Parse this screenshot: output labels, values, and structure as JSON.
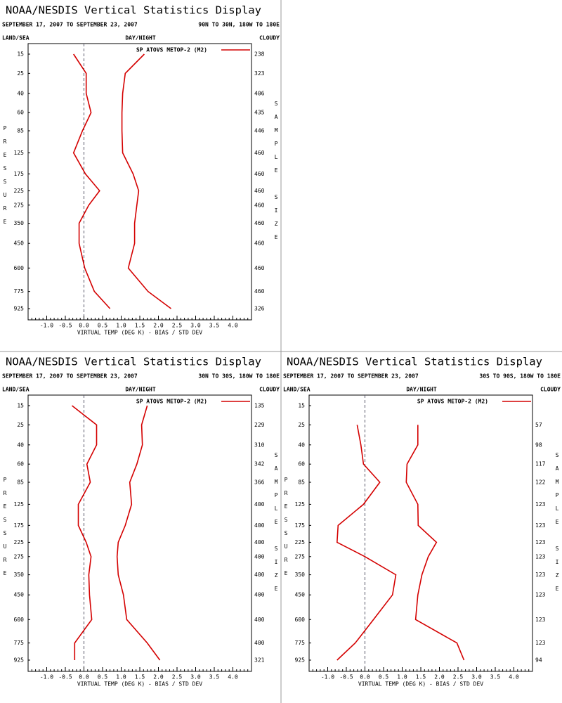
{
  "chart_data": [
    {
      "type": "line",
      "title": "NOAA/NESDIS Vertical Statistics Display",
      "subtitle": "SEPTEMBER 17, 2007 TO SEPTEMBER 23, 2007",
      "region": "90N TO 30N, 180W TO 180E",
      "land_sea": "LAND/SEA",
      "day_night": "DAY/NIGHT",
      "cloudy": "CLOUDY",
      "ylabel": "PRESSURE",
      "y2label": "SAMPLE SIZE",
      "xlabel": "VIRTUAL TEMP (DEG K) - BIAS / STD DEV",
      "legend": "SP ATOVS METOP-2 (M2)",
      "y": [
        15,
        25,
        40,
        60,
        85,
        125,
        175,
        225,
        275,
        350,
        450,
        600,
        775,
        925
      ],
      "sample_size": [
        238,
        323,
        406,
        435,
        446,
        460,
        460,
        460,
        460,
        460,
        460,
        460,
        460,
        326
      ],
      "xlim": [
        -1.5,
        4.5
      ],
      "xticks": [
        {
          "value": -1,
          "label": "-1.0"
        },
        -0.5,
        {
          "value": 0,
          "label": "0.0"
        },
        0.5,
        {
          "value": 1,
          "label": "1.0"
        },
        1.5,
        {
          "value": 2,
          "label": "2.0"
        },
        2.5,
        {
          "value": 3,
          "label": "3.0"
        },
        3.5,
        {
          "value": 4,
          "label": "4.0"
        }
      ],
      "series": [
        {
          "color": "#d40000",
          "values": [
            -0.28,
            0.06,
            0.06,
            0.19,
            -0.04,
            -0.28,
            0.04,
            0.42,
            0.13,
            -0.13,
            -0.13,
            0.02,
            0.28,
            0.7
          ]
        },
        {
          "color": "#d40000",
          "values": [
            1.62,
            1.11,
            1.04,
            1.02,
            1.02,
            1.04,
            1.32,
            1.47,
            1.42,
            1.36,
            1.36,
            1.19,
            1.72,
            2.34
          ]
        }
      ]
    },
    {
      "type": "line",
      "title": "NOAA/NESDIS Vertical Statistics Display",
      "subtitle": "SEPTEMBER 17, 2007 TO SEPTEMBER 23, 2007",
      "region": "30N TO 30S, 180W TO 180E",
      "land_sea": "LAND/SEA",
      "day_night": "DAY/NIGHT",
      "cloudy": "CLOUDY",
      "ylabel": "PRESSURE",
      "y2label": "SAMPLE SIZE",
      "xlabel": "VIRTUAL TEMP (DEG K) - BIAS / STD DEV",
      "legend": "SP ATOVS METOP-2 (M2)",
      "y": [
        15,
        25,
        40,
        60,
        85,
        125,
        175,
        225,
        275,
        350,
        450,
        600,
        775,
        925
      ],
      "sample_size": [
        135,
        229,
        310,
        342,
        366,
        400,
        400,
        400,
        400,
        400,
        400,
        400,
        400,
        321
      ],
      "xlim": [
        -1.5,
        4.5
      ],
      "xticks": [
        {
          "value": -1,
          "label": "-1.0"
        },
        -0.5,
        {
          "value": 0,
          "label": "0.0"
        },
        0.5,
        {
          "value": 1,
          "label": "1.0"
        },
        1.5,
        {
          "value": 2,
          "label": "2.0"
        },
        2.5,
        {
          "value": 3,
          "label": "3.0"
        },
        3.5,
        {
          "value": 4,
          "label": "4.0"
        }
      ],
      "series": [
        {
          "color": "#d40000",
          "values": [
            -0.32,
            0.34,
            0.34,
            0.08,
            0.17,
            -0.15,
            -0.15,
            0.06,
            0.19,
            0.13,
            0.15,
            0.21,
            -0.25,
            -0.25
          ]
        },
        {
          "color": "#d40000",
          "values": [
            1.7,
            1.55,
            1.57,
            1.42,
            1.23,
            1.28,
            1.11,
            0.92,
            0.89,
            0.92,
            1.06,
            1.15,
            1.7,
            2.04
          ]
        }
      ]
    },
    {
      "type": "line",
      "title": "NOAA/NESDIS Vertical Statistics Display",
      "subtitle": "SEPTEMBER 17, 2007 TO SEPTEMBER 23, 2007",
      "region": "30S TO 90S, 180W TO 180E",
      "land_sea": "LAND/SEA",
      "day_night": "DAY/NIGHT",
      "cloudy": "CLOUDY",
      "ylabel": "PRESSURE",
      "y2label": "SAMPLE SIZE",
      "xlabel": "VIRTUAL TEMP (DEG K) - BIAS / STD DEV",
      "legend": "SP ATOVS METOP-2 (M2)",
      "y": [
        15,
        25,
        40,
        60,
        85,
        125,
        175,
        225,
        275,
        350,
        450,
        600,
        775,
        925
      ],
      "sample_size": [
        null,
        57,
        98,
        117,
        122,
        123,
        123,
        123,
        123,
        123,
        123,
        123,
        123,
        94
      ],
      "xlim": [
        -1.5,
        4.5
      ],
      "xticks": [
        {
          "value": -1,
          "label": "-1.0"
        },
        -0.5,
        {
          "value": 0,
          "label": "0.0"
        },
        0.5,
        {
          "value": 1,
          "label": "1.0"
        },
        1.5,
        {
          "value": 2,
          "label": "2.0"
        },
        2.5,
        {
          "value": 3,
          "label": "3.0"
        },
        3.5,
        {
          "value": 4,
          "label": "4.0"
        }
      ],
      "series": [
        {
          "color": "#d40000",
          "values": [
            null,
            -0.21,
            -0.11,
            -0.04,
            0.4,
            -0.04,
            -0.72,
            -0.75,
            0.0,
            0.83,
            0.74,
            0.23,
            -0.26,
            -0.75
          ]
        },
        {
          "color": "#d40000",
          "values": [
            null,
            1.42,
            1.42,
            1.13,
            1.11,
            1.42,
            1.43,
            1.92,
            1.7,
            1.53,
            1.42,
            1.36,
            2.47,
            2.66
          ]
        }
      ]
    }
  ]
}
